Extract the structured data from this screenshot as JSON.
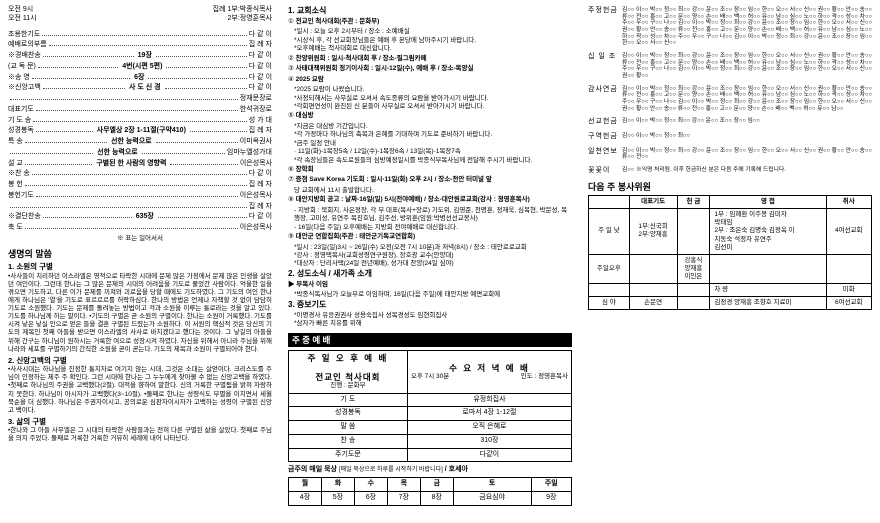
{
  "col1": {
    "times": [
      {
        "l": "오전 9시",
        "r1": "집례",
        "r2": "1부:박종식목사"
      },
      {
        "l": "오전 11시",
        "r1": "",
        "r2": "2부:정영훈목사"
      }
    ],
    "order": [
      {
        "l": "조용한기도",
        "m": "",
        "r": "다 같 이"
      },
      {
        "l": "예배로의부름",
        "m": "",
        "r": "집 례 자"
      },
      {
        "l": "※경배찬송",
        "m": "19장",
        "r": "다 같 이"
      },
      {
        "l": "(교 독 문)",
        "m": "4번(시편 5편)",
        "r": "다 같 이"
      },
      {
        "l": "※송   영",
        "m": "6장",
        "r": "다 같 이"
      },
      {
        "l": "※신앙고백",
        "m": "사 도 신 경",
        "r": "다 같 이"
      },
      {
        "l": "",
        "m": "",
        "r": "정재문장로"
      },
      {
        "l": "대표기도",
        "m": "",
        "r": "한석귀장로"
      },
      {
        "l": "기 도 송",
        "m": "",
        "r": "성 가 대"
      },
      {
        "l": "성경봉독",
        "m": "사무엘상 2장 1-11절(구약410)",
        "r": "집 례 자"
      },
      {
        "l": "특   송",
        "m": "선한 능력으로",
        "r": "이미옥권사"
      },
      {
        "l": "",
        "m": "선한 능력으로",
        "r": "임마누엘성가대"
      },
      {
        "l": "설   교",
        "m": "구별된 한 사람의 영향력",
        "r": "이은성목사"
      },
      {
        "l": "※찬   송",
        "m": "",
        "r": "다 같 이"
      },
      {
        "l": "봉   헌",
        "m": "",
        "r": "집 례 자"
      },
      {
        "l": "봉헌기도",
        "m": "",
        "r": "이은성목사"
      },
      {
        "l": "",
        "m": "",
        "r": "집 례 자"
      },
      {
        "l": "※결단찬송",
        "m": "635장",
        "r": "다 같 이"
      },
      {
        "l": "축   도",
        "m": "",
        "r": "이은성목사"
      }
    ],
    "center_note": "※ 표는 일어서서",
    "sec_title": "생명의 말씀",
    "h1": "1. 소원의 구별",
    "p1": "•사사들이 치리하던 이스라엘은 영적으로 타락한 시대에 문제 많은 가정에서 문제 많은 인생을 살았던 여인이다. 그런데 한나는 그 많은 문제의 시대의 어려움을 기도로 풀었간 사람이다. 억울한 일을 겪으면 기도하고, 다른 이가 문제를 끼쳐와 괴로움을 당할 때에도 기도하였다. 그 기도의 여인 한나에게 하나님은 '열'을 기도로 표르르르를 허락하심다. 한나의 방법은 언제나 자책할 것 없이 담담히 기도로 소원했다. 기도는 문제를 돌려놓는 방법이고 걱과 소원을 이루는 통로라는 것을 알고 있다. 기도를 하나님께 하는 말이다.\n•기도의 구별은 곧 소원의 구별이다. 한나는 소원이 거룩했다. 기도를 시켜 낳은 낳실 인으로 얻은 들을 결혼 구별된 드렸는가 소원하다. 이 서원의 핵심적 것은 당신의 기도의 제목인 첫째 아들을 받으면 이스라엘의 사사로 바치겠다고 했다는 것이다. 그 낳길의 아들을 위해 간구는 하니님이 원하시는 거룩한 여으로 성장시켜 하였다. 자신을 위해서 아니라 주님을 위해 나라와 세포를 구별하기의 간직한 소원을 곧이 곧는다. 기도의 제목과 소원이 구별되어야 한다.",
    "h2": "2. 신앙고백의 구별",
    "p2": "•사사시대는 하나님을 진정한 통치자로 여기지 않는 시대, 그것은 소대는 살얻이다. 크리스도를 주님이 인정하는 제주 주 확인다. 그런 시대에 한나는 그 누누에게 찾아볼 수 없는 신앙고백을 하였다.\n•첫째로 하나님의 주권을 고백했다(2절). 대적을 향하여 말한다. 신의 거룩한 구별됨을 밝혀 자랑하지 못한다. 하나님이 아시자가 고백했다(3~10절).\n•둘째로 한나는 성령식도 부별을 이치면서 세월 묵순을 더 심했다. 하나님은 주권자이시고, 공의로운 심판자이시자가 고백하는 성령이 구별된 신앙고 백이다.",
    "h3": "3. 삶의 구별",
    "p3": "•한나와 그 아들 사무엘은 그 시대의 타락한 사람들과는 전혀 다른 구별된 삶을 살았다. 첫째로 주님을 의지 주었다. 둘째로 거룩한 거룩한 거뷰히 세례에 내어 나타난다."
  },
  "col2": {
    "h": "1. 교회소식",
    "items": [
      {
        "n": "①",
        "t": "전교인 척사대회(주관 : 문화부)",
        "subs": [
          "*일시 : 오늘 오후 2시부터 / 장소 : 소예배실",
          "*시상식 후, 각 선교회장님들은 예배 후 본당에 남아주시기 바랍니다.",
          "*오후예배는 척사대회로 대신합니다."
        ]
      },
      {
        "n": "②",
        "t": "찬양위원회 : 일시-척사대회 후 / 장소-필그림카페",
        "subs": []
      },
      {
        "n": "③",
        "t": "사태대책위원회 정기이사회 : 일시-12일(수), 예배 후 / 장소-목양실",
        "subs": []
      },
      {
        "n": "④",
        "t": "2025 요람",
        "subs": [
          "*2025 요람이 나왔습니다.",
          "*사정되해서는 사무실로 오셔서 속도종류의 요람을 받아가시기 바랍니다.",
          "*각회편연성이 완진된 신 분들이 사무실로 오셔서 받아가시기 바랍니다."
        ]
      },
      {
        "n": "⑤",
        "t": "대심방",
        "subs": [
          "*지금은 대심방 기간입니다.",
          "*각 가정마다 하나님의 축복과 은혜를 기대하며 기도로 준비하기 바랍니다.",
          "*금주 일정 안내",
          "· 11일(화)-1목장5속 / 12일(수)-1목장6속 / 13일(목)-1목장7속",
          "*각 속장님들은 속도로원들의 심방예정일시를 박종식부목사님께 전달해 주시기 바랍니다."
        ]
      },
      {
        "n": "⑥",
        "t": "장학회",
        "subs": []
      },
      {
        "n": "⑦",
        "t": "증점 Save Korea 기도회 : 일시-11일(화) 오후 2시 / 장소-천안 터미널 앞",
        "subs": [
          "                                     당 교회에서 11시 출발합니다."
        ]
      },
      {
        "n": "⑧",
        "t": "대안지방회 공고 : 날짜-16일(일) 5시(전야예배) / 장소-대안원로교회(강사 : 정영훈목사)",
        "subs": [
          "- 지방회 : 북회지, 사은정장, 각 부 대표(목사+장로) 기도위, 김영준, 천명훈, 정재욱, 심복현, 박문성, 목행장, 고미성, 유연주 목진호님, 김주선, 방위훈(임원:박병선선교봉사)",
          "- 16일(다음 주일) 오후예배는 지방회 전야예배로 대신합니다."
        ]
      },
      {
        "n": "⑨",
        "t": "대안군 연합집회(주관 : 태안군기독교연합회)",
        "subs": [
          "*일시 : 23일(일)3시 ~ 26일(수) 오전(오전 7시 10분)과 저녁(8시) / 장소 : 태안로로교회",
          "*강사 : 정영택목사(교회성령연구원장), 장호광 교수(안양대)",
          "*대상자 : 단리사택(24일 전년예배), 성가대 찬양(24일 심야)"
        ]
      }
    ],
    "h2": "2. 성도소식 / 새가족 소개",
    "items2": [
      {
        "n": "",
        "t": "▶ 부목사 이임",
        "subs": [
          "*박종식독사님가 오늘부로 이임하며, 16일(다음 주일)에 태안지방 예면교회에"
        ]
      }
    ],
    "h3": "3. 중보기도",
    "items3": [
      "*이명경사 유응권권사 성용숙집사 성복경성도 임현희집사",
      "*삼자가 빠른 치유를 위해"
    ],
    "bar": "주 중 예 배",
    "svc_head_l": "주 일 오 후 예 배",
    "svc_head_r": "수 요 저 녁 예 배",
    "svc_time_r": "오후 7시 30분",
    "svc_lead_r": "인도 : 정영훈목사",
    "svc_left_t": "전교인 척사대회",
    "svc_left_s": "진행 : 문화부",
    "svc_rows": [
      {
        "l": "기   도",
        "r": "유정희집사"
      },
      {
        "l": "성경봉독",
        "r": "로마서 4장 1-12절"
      },
      {
        "l": "말   씀",
        "r": "오직 은혜로"
      },
      {
        "l": "찬   송",
        "r": "310장"
      },
      {
        "l": "주기도문",
        "r": "다같이"
      }
    ],
    "read_label": "금주의 매일 묵상",
    "read_note": "[매일 묵상으로 하루를 시작하기 바랍니다]",
    "read_book": "/ 호세아",
    "days": [
      "월",
      "화",
      "수",
      "목",
      "금",
      "토",
      "주일"
    ],
    "chaps": [
      "4장",
      "5장",
      "6장",
      "7장",
      "8장",
      "금요심야",
      "9장"
    ]
  },
  "col3": {
    "rows": [
      {
        "label": "주정헌금",
        "body": "김○○ 이○○ 박○○ 정○○ 최○○ 강○○ 윤○○ 조○○ 장○○ 임○○ 한○○ 오○○ 서○○ 신○○ 권○○ 황○○ 안○○ 송○○ 류○○ 전○○ 홍○○ 고○○ 문○○ 양○○ 손○○ 배○○ 백○○ 허○○ 유○○ 남○○ 심○○ 노○○ 하○○ 곽○○ 성○○ 차○○ 주○○ 우○○ 구○○ 나○○ 김○○ 이○○ 박○○ 정○○ 최○○ 강○○ 윤○○ 조○○ 장○○ 임○○ 한○○ 오○○ 서○○ 신○○ 권○○ 황○○ 안○○ 송○○ 류○○ 전○○ 홍○○ 고○○ 문○○ 양○○ 손○○ 배○○ 백○○ 허○○ 유○○ 남○○ 심○○ 노○○ 하○○ 곽○○ 성○○ 차○○ 주○○ 우○○ 구○○ 나○○ 김○○ 이○○ 박○○ 정○○ 최○○ 강○○ 윤○○ 조○○ 장○○ 임○○ 한○○ 오○○ 서○○ 신○○"
      },
      {
        "label": "십 일 조",
        "body": "김○○ 이○○ 박○○ 정○○ 최○○ 강○○ 윤○○ 조○○ 장○○ 임○○ 한○○ 오○○ 서○○ 신○○ 권○○ 황○○ 안○○ 송○○ 류○○ 전○○ 홍○○ 고○○ 문○○ 양○○ 손○○ 배○○ 백○○ 허○○ 유○○ 남○○ 심○○ 노○○ 하○○ 곽○○ 성○○ 차○○ 주○○ 우○○ 구○○ 나○○ 김○○ 이○○ 박○○ 정○○ 최○○ 강○○ 윤○○ 조○○ 장○○ 임○○ 한○○ 오○○ 서○○ 신○○ 권○○ 황○○"
      },
      {
        "label": "감사연금",
        "body": "김○○ 이○○ 박○○ 정○○ 최○○ 강○○ 윤○○ 조○○ 장○○ 임○○ 한○○ 오○○ 서○○ 신○○ 권○○ 황○○ 안○○ 송○○ 류○○ 전○○ 홍○○ 고○○ 문○○ 양○○ 손○○ 배○○ 백○○ 허○○ 유○○ 남○○ 심○○ 노○○ 하○○ 곽○○ 성○○ 차○○ 주○○ 우○○ 구○○ 나○○ 김○○ 이○○ 박○○ 정○○ 최○○ 강○○ 윤○○ 조○○ 장○○ 임○○ 한○○ 오○○ 서○○ 신○○ 권○○ 황○○ 안○○ 송○○ 류○○ 전○○ 홍○○ 고○○ 문○○ 양○○ 손○○ 배○○ 백○○ 허○○ 유○○ 남○○"
      },
      {
        "label": "선교헌금",
        "body": "김○○ 이○○ 박○○ 정○○ 최○○ 강○○ 윤○○ 조○○ 장○○ 임○○"
      },
      {
        "label": "구역헌금",
        "body": "김○○ 이○○ 박○○ 정○○ 최○○"
      },
      {
        "label": "일천연보",
        "body": "김○○ 이○○ 박○○ 정○○ 최○○ 강○○ 윤○○ 조○○ 장○○ 임○○ 한○○ 오○○ 서○○ 신○○ 권○○ 황○○ 안○○ 송○○ 류○○ 전○○"
      },
      {
        "label": "꽃꽃이",
        "body": "김○○    ※익명 처리됨. 이후 헌금하신 분은 다음 주에 기록해 드립니다."
      }
    ],
    "serve_title": "다음 주 봉사위원",
    "serve_head": [
      "",
      "대표기도",
      "헌 금",
      "영 접",
      "취사"
    ],
    "serve_rows": [
      {
        "slot": "주 일 낮",
        "a": "1부:신국희\n2부:양재흥",
        "b": "",
        "c": "1부 : 임혜환 이주봉 김미자\n       박태임\n2부 : 조은숙 김명숙 김정옥 이\n       치동숙 석정자 유연주\n       김선미",
        "d": "4여선교회"
      },
      {
        "slot": "주일오후",
        "a": "",
        "b": "강홍식\n양재흥\n이인은",
        "c": "",
        "d": ""
      },
      {
        "slot": "",
        "a": "",
        "b": "",
        "c": "차 량",
        "d": "미화"
      },
      {
        "slot": "심 야",
        "a": "손문연",
        "b": "",
        "c": "김정경 양재흥 조향호 지료미",
        "d": "6여선교회"
      }
    ]
  }
}
